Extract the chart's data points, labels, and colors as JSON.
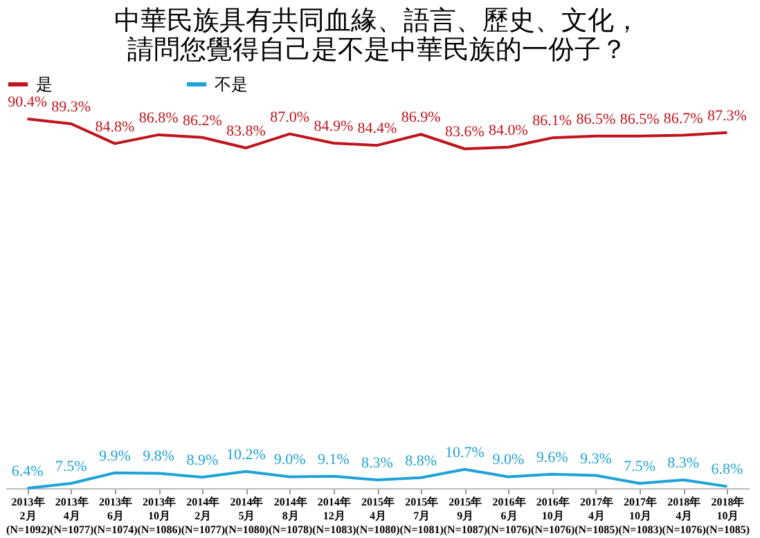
{
  "chart_data": {
    "type": "line",
    "title": [
      "中華民族具有共同血緣、語言、歷史、文化，",
      "請問您覺得自己是不是中華民族的一份子？"
    ],
    "categories": [
      "2013年\n2月\n(N=1092)",
      "2013年\n4月\n(N=1077)",
      "2013年\n6月\n(N=1074)",
      "2013年\n10月\n(N=1086)",
      "2014年\n2月\n(N=1077)",
      "2014年\n5月\n(N=1080)",
      "2014年\n8月\n(N=1078)",
      "2014年\n12月\n(N=1083)",
      "2015年\n4月\n(N=1080)",
      "2015年\n7月\n(N=1081)",
      "2015年\n9月\n(N=1087)",
      "2016年\n6月\n(N=1076)",
      "2016年\n10月\n(N=1076)",
      "2017年\n4月\n(N=1085)",
      "2017年\n10月\n(N=1083)",
      "2018年\n4月\n(N=1076)",
      "2018年\n10月\n(N=1085)"
    ],
    "series": [
      {
        "name": "是",
        "color": "#c0141c",
        "values": [
          90.4,
          89.3,
          84.8,
          86.8,
          86.2,
          83.8,
          87.0,
          84.9,
          84.4,
          86.9,
          83.6,
          84.0,
          86.1,
          86.5,
          86.5,
          86.7,
          87.3
        ],
        "value_labels": [
          "90.4%",
          "89.3%",
          "84.8%",
          "86.8%",
          "86.2%",
          "83.8%",
          "87.0%",
          "84.9%",
          "84.4%",
          "86.9%",
          "83.6%",
          "84.0%",
          "86.1%",
          "86.5%",
          "86.5%",
          "86.7%",
          "87.3%"
        ]
      },
      {
        "name": "不是",
        "color": "#1fa3d6",
        "values": [
          6.4,
          7.5,
          9.9,
          9.8,
          8.9,
          10.2,
          9.0,
          9.1,
          8.3,
          8.8,
          10.7,
          9.0,
          9.6,
          9.3,
          7.5,
          8.3,
          6.8
        ],
        "value_labels": [
          "6.4%",
          "7.5%",
          "9.9%",
          "9.8%",
          "8.9%",
          "10.2%",
          "9.0%",
          "9.1%",
          "8.3%",
          "8.8%",
          "10.7%",
          "9.0%",
          "9.6%",
          "9.3%",
          "7.5%",
          "8.3%",
          "6.8%"
        ]
      }
    ],
    "grid": false,
    "legend": "top",
    "marker": "none",
    "line_style": "solid",
    "tick_labels": "x"
  }
}
